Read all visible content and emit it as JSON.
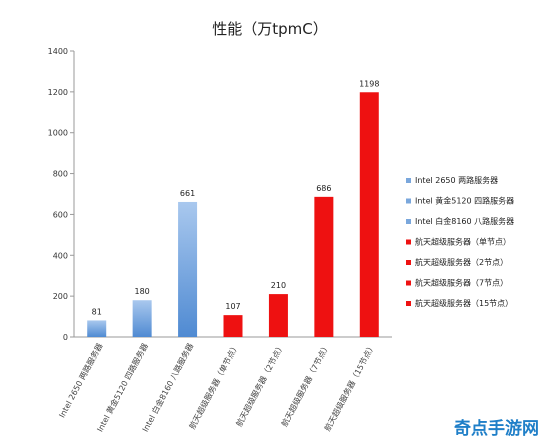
{
  "chart_data": {
    "type": "bar",
    "title": "性能（万tpmC）",
    "categories": [
      "Intel 2650 两路服务器",
      "Intel 黄金5120 四路服务器",
      "Intel 白金8160 八路服务器",
      "航天超级服务器（单节点）",
      "航天超级服务器（2节点）",
      "航天超级服务器（7节点）",
      "航天超级服务器（15节点）"
    ],
    "values": [
      81,
      180,
      661,
      107,
      210,
      686,
      1198
    ],
    "colors": [
      "#7aa7dc",
      "#7aa7dc",
      "#7aa7dc",
      "#ee1111",
      "#ee1111",
      "#ee1111",
      "#ee1111"
    ],
    "ylim": [
      0,
      1400
    ],
    "yticks": [
      0,
      200,
      400,
      600,
      800,
      1000,
      1200,
      1400
    ],
    "grid": false,
    "legend_position": "right",
    "legend": [
      {
        "name": "Intel 2650 两路服务器",
        "color": "#7aa7dc"
      },
      {
        "name": "Intel 黄金5120 四路服务器",
        "color": "#7aa7dc"
      },
      {
        "name": "Intel 白金8160 八路服务器",
        "color": "#7aa7dc"
      },
      {
        "name": "航天超级服务器（单节点）",
        "color": "#ee1111"
      },
      {
        "name": "航天超级服务器（2节点）",
        "color": "#ee1111"
      },
      {
        "name": "航天超级服务器（7节点）",
        "color": "#ee1111"
      },
      {
        "name": "航天超级服务器（15节点）",
        "color": "#ee1111"
      }
    ]
  },
  "watermark": "奇点手游网"
}
